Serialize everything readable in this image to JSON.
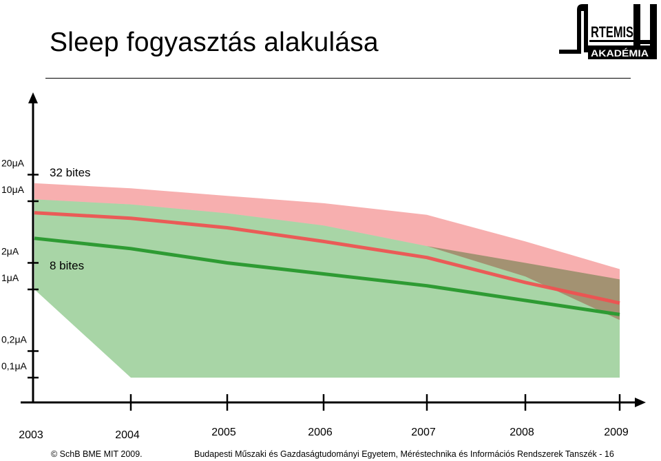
{
  "slide": {
    "title": "Sleep fogyasztás alakulása",
    "footer_left": "© SchB BME MIT  2009.",
    "footer_right": "Budapesti Műszaki és Gazdaságtudományi Egyetem, Méréstechnika és Információs Rendszerek Tanszék - 16"
  },
  "logo": {
    "text_top": "RTEMIS",
    "text_bottom": "AKADÉMIA",
    "color": "#000000"
  },
  "chart_data": {
    "type": "area",
    "x": [
      2003,
      2004,
      2005,
      2006,
      2007,
      2008,
      2009
    ],
    "x_tick_labels": [
      "2003",
      "2004",
      "2005",
      "2006",
      "2007",
      "2008",
      "2009"
    ],
    "y_scale": "log",
    "y_ticks": [
      0.1,
      0.2,
      1,
      2,
      10,
      20
    ],
    "y_tick_labels": [
      "0,1μA",
      "0,2μA",
      "1μA",
      "2μA",
      "10μA",
      "20μA"
    ],
    "y_unit": "μA",
    "grid": false,
    "series": [
      {
        "name": "32 bites",
        "color": "#f05050",
        "band_color": "#f7a6a6",
        "line": [
          {
            "x": 2003,
            "y": 7.4
          },
          {
            "x": 2004,
            "y": 6.4
          },
          {
            "x": 2005,
            "y": 5.0
          },
          {
            "x": 2006,
            "y": 3.5
          },
          {
            "x": 2007,
            "y": 2.3
          },
          {
            "x": 2008,
            "y": 1.2
          },
          {
            "x": 2009,
            "y": 0.7
          }
        ],
        "band_upper": [
          {
            "x": 2003,
            "y": 16
          },
          {
            "x": 2004,
            "y": 14
          },
          {
            "x": 2005,
            "y": 11.5
          },
          {
            "x": 2006,
            "y": 9.5
          },
          {
            "x": 2007,
            "y": 7
          },
          {
            "x": 2008,
            "y": 3.5
          },
          {
            "x": 2009,
            "y": 1.7
          }
        ],
        "band_lower": [
          {
            "x": 2003,
            "y": 10.5
          },
          {
            "x": 2004,
            "y": 9.2
          },
          {
            "x": 2005,
            "y": 7.3
          },
          {
            "x": 2006,
            "y": 5.3
          },
          {
            "x": 2007,
            "y": 3.1
          },
          {
            "x": 2008,
            "y": 1.4
          },
          {
            "x": 2009,
            "y": 0.45
          }
        ]
      },
      {
        "name": "8 bites",
        "color": "#2e9b33",
        "band_color": "#a8d5a6",
        "line": [
          {
            "x": 2003,
            "y": 3.8
          },
          {
            "x": 2004,
            "y": 2.9
          },
          {
            "x": 2005,
            "y": 2.0
          },
          {
            "x": 2006,
            "y": 1.5
          },
          {
            "x": 2007,
            "y": 1.1
          },
          {
            "x": 2008,
            "y": 0.75
          },
          {
            "x": 2009,
            "y": 0.52
          }
        ],
        "band_upper": [
          {
            "x": 2003,
            "y": 10.5
          },
          {
            "x": 2004,
            "y": 9.2
          },
          {
            "x": 2005,
            "y": 7.3
          },
          {
            "x": 2006,
            "y": 5.3
          },
          {
            "x": 2007,
            "y": 3.1
          },
          {
            "x": 2008,
            "y": 2.0
          },
          {
            "x": 2009,
            "y": 1.3
          }
        ],
        "band_lower": [
          {
            "x": 2003,
            "y": 1.0
          },
          {
            "x": 2004,
            "y": 0.1
          },
          {
            "x": 2005,
            "y": 0.1
          },
          {
            "x": 2006,
            "y": 0.1
          },
          {
            "x": 2007,
            "y": 0.1
          },
          {
            "x": 2008,
            "y": 0.1
          },
          {
            "x": 2009,
            "y": 0.1
          }
        ]
      }
    ],
    "overlap_color": "#aea57f"
  }
}
